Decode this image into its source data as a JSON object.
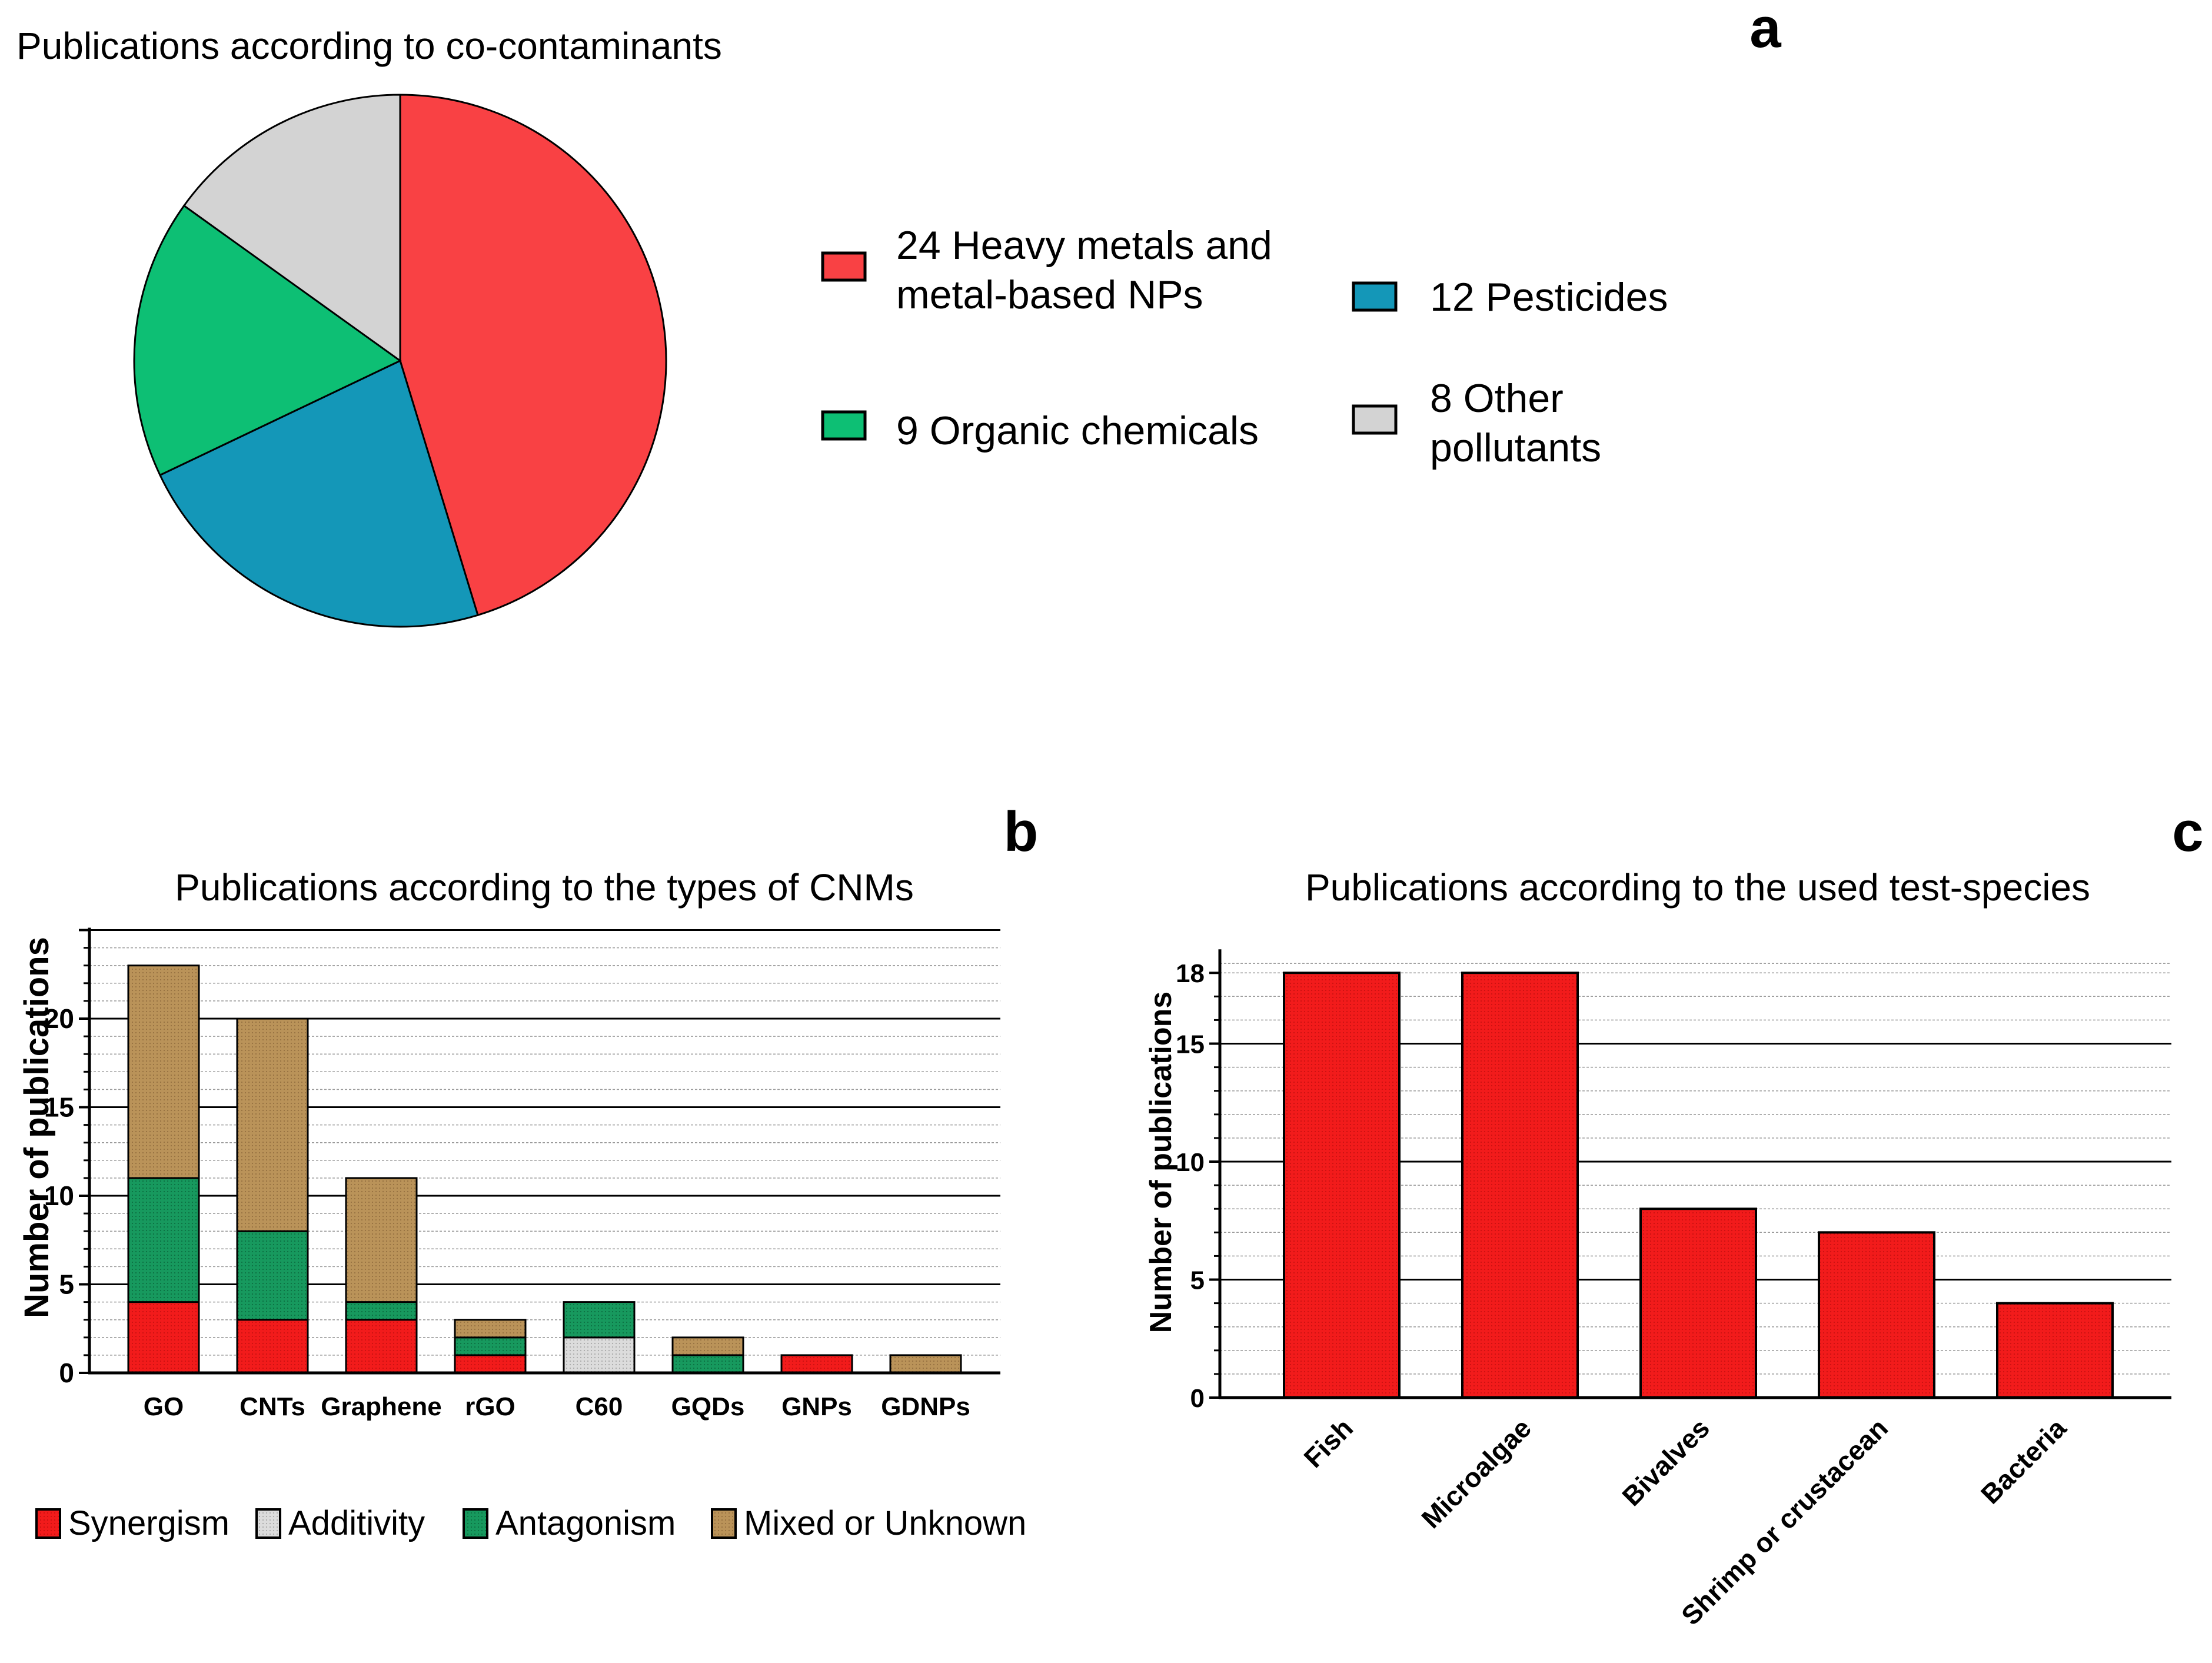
{
  "panel_letters": {
    "a": "a",
    "b": "b",
    "c": "c"
  },
  "chart_data": [
    {
      "id": "a",
      "type": "pie",
      "title": "Publications according to co-contaminants",
      "slices": [
        {
          "label": "24 Heavy metals and metal-based NPs",
          "value": 24,
          "color": "#f94144"
        },
        {
          "label": "12 Pesticides",
          "value": 12,
          "color": "#1497b8"
        },
        {
          "label": "9 Organic chemicals",
          "value": 9,
          "color": "#0dbf74"
        },
        {
          "label": "8 Other pollutants",
          "value": 8,
          "color": "#d3d3d3"
        }
      ],
      "legend": [
        [
          "24 Heavy metals and",
          "metal-based NPs"
        ],
        [
          "12 Pesticides"
        ],
        [
          "9 Organic chemicals"
        ],
        [
          "8 Other",
          "pollutants"
        ]
      ],
      "legend_placement": "right"
    },
    {
      "id": "b",
      "type": "bar",
      "stacked": true,
      "title": "Publications according to the types of CNMs",
      "xlabel": "",
      "ylabel": "Number of publications",
      "ylim": [
        0,
        25
      ],
      "yticks": [
        0,
        5,
        10,
        15,
        20
      ],
      "categories": [
        "GO",
        "CNTs",
        "Graphene",
        "rGO",
        "C60",
        "GQDs",
        "GNPs",
        "GDNPs"
      ],
      "series": [
        {
          "name": "Synergism",
          "values": [
            4,
            3,
            3,
            1,
            0,
            0,
            1,
            0
          ],
          "color": "#f21b1b"
        },
        {
          "name": "Additivity",
          "values": [
            0,
            0,
            0,
            0,
            2,
            0,
            0,
            0
          ],
          "color": "#d9d9d9"
        },
        {
          "name": "Antagonism",
          "values": [
            7,
            5,
            1,
            1,
            2,
            1,
            0,
            0
          ],
          "color": "#15985c"
        },
        {
          "name": "Mixed or Unknown",
          "values": [
            12,
            12,
            7,
            1,
            0,
            1,
            0,
            1
          ],
          "color": "#b89159"
        }
      ],
      "grid": true,
      "legend_placement": "bottom"
    },
    {
      "id": "c",
      "type": "bar",
      "title": "Publications according to the used test-species",
      "xlabel": "",
      "ylabel": "Number of publications",
      "ylim": [
        0,
        18
      ],
      "yticks": [
        0,
        5,
        10,
        15,
        18
      ],
      "categories": [
        "Fish",
        "Microalgae",
        "Bivalves",
        "Shrimp or crustacean",
        "Bacteria"
      ],
      "values": [
        18,
        18,
        8,
        7,
        4
      ],
      "color": "#f21b1b",
      "grid": true
    }
  ]
}
